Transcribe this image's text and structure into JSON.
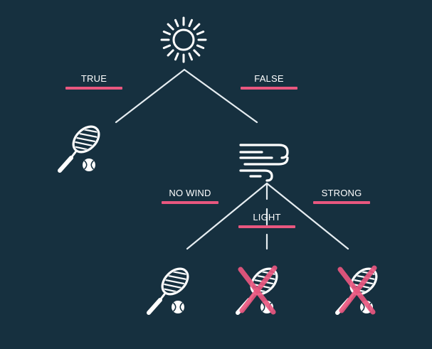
{
  "colors": {
    "background": "#16303f",
    "line": "#e6edf1",
    "icon": "#ffffff",
    "accent": "#e9577f"
  },
  "nodes": {
    "root": {
      "icon": "sun-icon"
    },
    "left_leaf": {
      "icon": "tennis-racket-icon",
      "outcome": "play"
    },
    "wind": {
      "icon": "wind-icon"
    },
    "leaf_no_wind": {
      "icon": "tennis-racket-icon",
      "outcome": "play"
    },
    "leaf_light": {
      "icon": "tennis-racket-icon",
      "outcome": "no-play"
    },
    "leaf_strong": {
      "icon": "tennis-racket-icon",
      "outcome": "no-play"
    }
  },
  "edges": {
    "true": {
      "label": "TRUE"
    },
    "false": {
      "label": "FALSE"
    },
    "no_wind": {
      "label": "NO WIND"
    },
    "light": {
      "label": "LIGHT"
    },
    "strong": {
      "label": "STRONG"
    }
  }
}
